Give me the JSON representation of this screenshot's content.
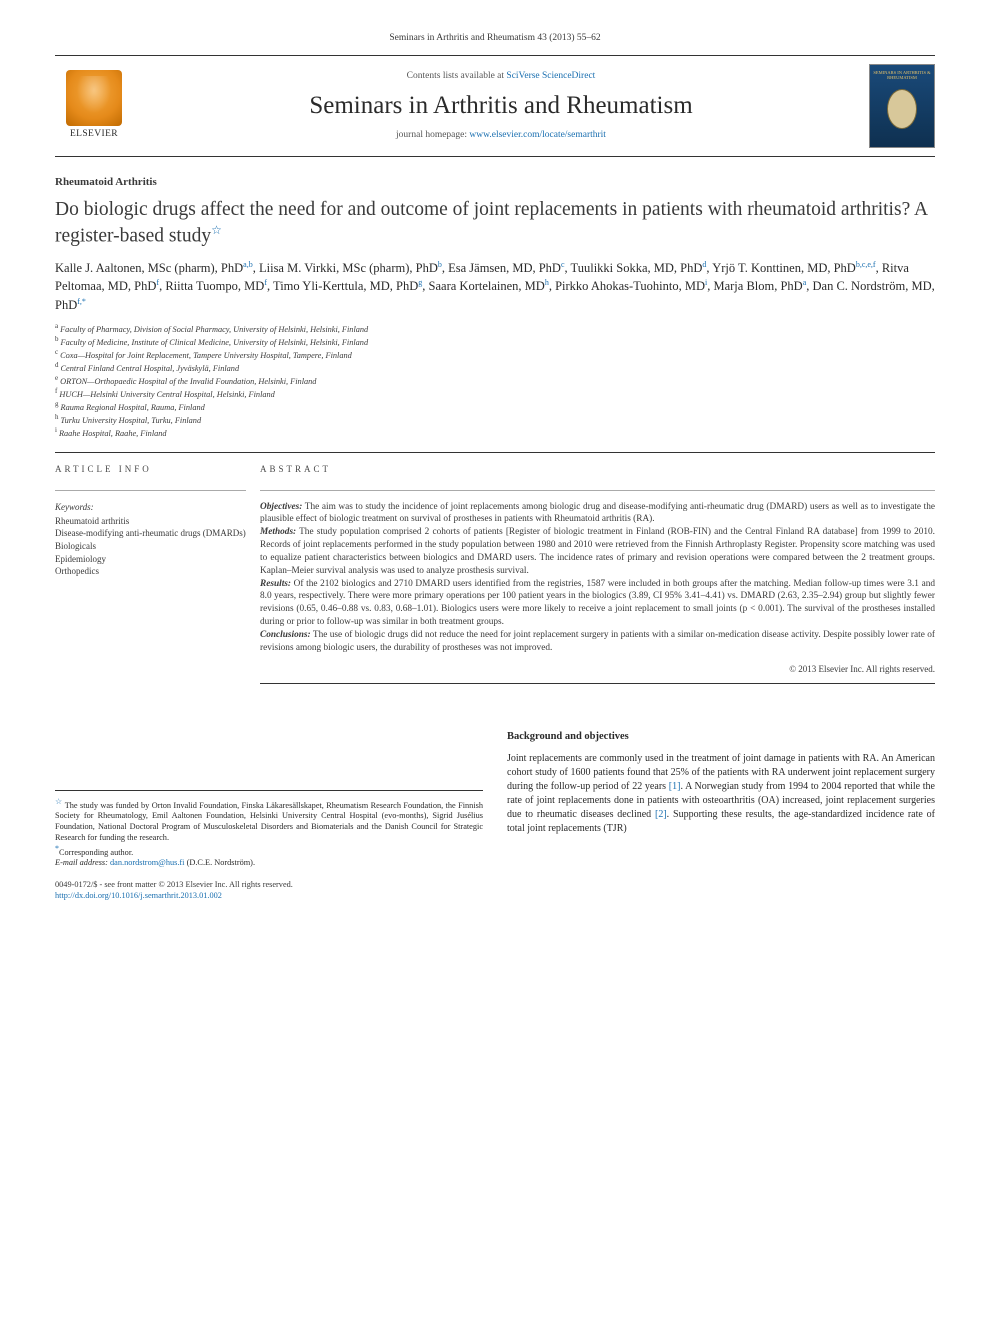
{
  "running_head": "Seminars in Arthritis and Rheumatism 43 (2013) 55–62",
  "banner": {
    "contents_prefix": "Contents lists available at ",
    "contents_link": "SciVerse ScienceDirect",
    "journal": "Seminars in Arthritis and Rheumatism",
    "homepage_prefix": "journal homepage: ",
    "homepage_link": "www.elsevier.com/locate/semarthrit",
    "publisher": "ELSEVIER",
    "cover_text": "SEMINARS IN ARTHRITIS & RHEUMATISM"
  },
  "section_label": "Rheumatoid Arthritis",
  "title": "Do biologic drugs affect the need for and outcome of joint replacements in patients with rheumatoid arthritis? A register-based study",
  "title_marker": "☆",
  "authors_html": "Kalle J. Aaltonen, MSc (pharm), PhD<sup class='sup'>a,b</sup>, Liisa M. Virkki, MSc (pharm), PhD<sup class='sup'>b</sup>, Esa Jämsen, MD, PhD<sup class='sup'>c</sup>, Tuulikki Sokka, MD, PhD<sup class='sup'>d</sup>, Yrjö T. Konttinen, MD, PhD<sup class='sup'>b,c,e,f</sup>, Ritva Peltomaa, MD, PhD<sup class='sup'>f</sup>, Riitta Tuompo, MD<sup class='sup'>f</sup>, Timo Yli-Kerttula, MD, PhD<sup class='sup'>g</sup>, Saara Kortelainen, MD<sup class='sup'>h</sup>, Pirkko Ahokas-Tuohinto, MD<sup class='sup'>i</sup>, Marja Blom, PhD<sup class='sup'>a</sup>, Dan C. Nordström, MD, PhD<sup class='sup'>f,*</sup>",
  "affiliations": [
    {
      "tag": "a",
      "text": "Faculty of Pharmacy, Division of Social Pharmacy, University of Helsinki, Helsinki, Finland"
    },
    {
      "tag": "b",
      "text": "Faculty of Medicine, Institute of Clinical Medicine, University of Helsinki, Helsinki, Finland"
    },
    {
      "tag": "c",
      "text": "Coxa—Hospital for Joint Replacement, Tampere University Hospital, Tampere, Finland"
    },
    {
      "tag": "d",
      "text": "Central Finland Central Hospital, Jyväskylä, Finland"
    },
    {
      "tag": "e",
      "text": "ORTON—Orthopaedic Hospital of the Invalid Foundation, Helsinki, Finland"
    },
    {
      "tag": "f",
      "text": "HUCH—Helsinki University Central Hospital, Helsinki, Finland"
    },
    {
      "tag": "g",
      "text": "Rauma Regional Hospital, Rauma, Finland"
    },
    {
      "tag": "h",
      "text": "Turku University Hospital, Turku, Finland"
    },
    {
      "tag": "i",
      "text": "Raahe Hospital, Raahe, Finland"
    }
  ],
  "article_info": {
    "head": "article info",
    "kw_label": "Keywords:",
    "keywords": [
      "Rheumatoid arthritis",
      "Disease-modifying anti-rheumatic drugs (DMARDs)",
      "Biologicals",
      "Epidemiology",
      "Orthopedics"
    ]
  },
  "abstract": {
    "head": "abstract",
    "objectives_label": "Objectives:",
    "objectives": "The aim was to study the incidence of joint replacements among biologic drug and disease-modifying anti-rheumatic drug (DMARD) users as well as to investigate the plausible effect of biologic treatment on survival of prostheses in patients with Rheumatoid arthritis (RA).",
    "methods_label": "Methods:",
    "methods": "The study population comprised 2 cohorts of patients [Register of biologic treatment in Finland (ROB-FIN) and the Central Finland RA database] from 1999 to 2010. Records of joint replacements performed in the study population between 1980 and 2010 were retrieved from the Finnish Arthroplasty Register. Propensity score matching was used to equalize patient characteristics between biologics and DMARD users. The incidence rates of primary and revision operations were compared between the 2 treatment groups. Kaplan–Meier survival analysis was used to analyze prosthesis survival.",
    "results_label": "Results:",
    "results": "Of the 2102 biologics and 2710 DMARD users identified from the registries, 1587 were included in both groups after the matching. Median follow-up times were 3.1 and 8.0 years, respectively. There were more primary operations per 100 patient years in the biologics (3.89, CI 95% 3.41–4.41) vs. DMARD (2.63, 2.35–2.94) group but slightly fewer revisions (0.65, 0.46–0.88 vs. 0.83, 0.68–1.01). Biologics users were more likely to receive a joint replacement to small joints (p < 0.001). The survival of the prostheses installed during or prior to follow-up was similar in both treatment groups.",
    "conclusions_label": "Conclusions:",
    "conclusions": "The use of biologic drugs did not reduce the need for joint replacement surgery in patients with a similar on-medication disease activity. Despite possibly lower rate of revisions among biologic users, the durability of prostheses was not improved.",
    "copyright": "© 2013 Elsevier Inc. All rights reserved."
  },
  "body": {
    "heading": "Background and objectives",
    "para": "Joint replacements are commonly used in the treatment of joint damage in patients with RA. An American cohort study of 1600 patients found that 25% of the patients with RA underwent joint replacement surgery during the follow-up period of 22 years [1]. A Norwegian study from 1994 to 2004 reported that while the rate of joint replacements done in patients with osteoarthritis (OA) increased, joint replacement surgeries due to rheumatic diseases declined [2]. Supporting these results, the age-standardized incidence rate of total joint replacements (TJR)"
  },
  "footnotes": {
    "funding_marker": "☆",
    "funding": "The study was funded by Orton Invalid Foundation, Finska Läkaresällskapet, Rheumatism Research Foundation, the Finnish Society for Rheumatology, Emil Aaltonen Foundation, Helsinki University Central Hospital (evo-months), Sigrid Jusélius Foundation, National Doctoral Program of Musculoskeletal Disorders and Biomaterials and the Danish Council for Strategic Research for funding the research.",
    "corr_marker": "*",
    "corr": "Corresponding author.",
    "email_label": "E-mail address:",
    "email": "dan.nordstrom@hus.fi",
    "email_who": "(D.C.E. Nordström)."
  },
  "footer": {
    "left1": "0049-0172/$ - see front matter © 2013 Elsevier Inc. All rights reserved.",
    "left2": "http://dx.doi.org/10.1016/j.semarthrit.2013.01.002"
  },
  "colors": {
    "link": "#1a6fb0",
    "text": "#3a3a3a",
    "rule": "#333333"
  }
}
